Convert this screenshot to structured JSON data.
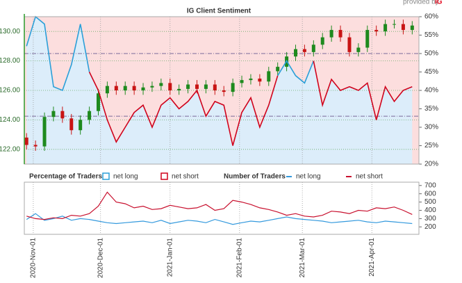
{
  "header": {
    "provided_by": "provided by",
    "logo": "IG"
  },
  "chart_data": [
    {
      "type": "candlestick",
      "title": "IG Client Sentiment",
      "legend_title": "Percentage of Traders",
      "x": [
        "2020-10-29",
        "2020-11-02",
        "2020-11-06",
        "2020-11-10",
        "2020-11-14",
        "2020-11-18",
        "2020-11-22",
        "2020-11-26",
        "2020-11-30",
        "2020-12-04",
        "2020-12-08",
        "2020-12-12",
        "2020-12-16",
        "2020-12-20",
        "2020-12-24",
        "2020-12-28",
        "2021-01-01",
        "2021-01-05",
        "2021-01-09",
        "2021-01-13",
        "2021-01-17",
        "2021-01-21",
        "2021-01-25",
        "2021-01-29",
        "2021-02-02",
        "2021-02-06",
        "2021-02-10",
        "2021-02-14",
        "2021-02-18",
        "2021-02-22",
        "2021-02-26",
        "2021-03-02",
        "2021-03-06",
        "2021-03-10",
        "2021-03-14",
        "2021-03-18",
        "2021-03-22",
        "2021-03-26",
        "2021-03-30",
        "2021-04-03",
        "2021-04-07",
        "2021-04-11",
        "2021-04-15",
        "2021-04-19"
      ],
      "open": [
        122.8,
        122.3,
        122.2,
        124.2,
        124.6,
        124.1,
        123.3,
        124.0,
        124.6,
        125.8,
        126.3,
        126.0,
        126.3,
        126.0,
        126.2,
        126.3,
        126.5,
        126.0,
        126.1,
        126.4,
        126.1,
        126.4,
        126.0,
        125.9,
        126.5,
        126.7,
        126.8,
        126.6,
        127.3,
        127.6,
        128.3,
        128.8,
        128.6,
        129.1,
        129.6,
        130.1,
        129.6,
        128.6,
        128.9,
        130.1,
        130.0,
        130.5,
        130.5,
        130.1
      ],
      "high": [
        123.1,
        122.6,
        124.5,
        124.9,
        124.9,
        124.4,
        124.3,
        124.9,
        126.1,
        126.6,
        126.6,
        126.6,
        126.6,
        126.5,
        126.6,
        126.8,
        126.8,
        126.4,
        126.7,
        126.7,
        126.7,
        126.7,
        126.3,
        126.8,
        127.0,
        127.1,
        127.1,
        127.6,
        127.9,
        128.6,
        129.1,
        129.1,
        129.4,
        129.9,
        130.4,
        130.4,
        129.9,
        129.2,
        130.4,
        130.4,
        130.8,
        130.8,
        130.8,
        130.7
      ],
      "low": [
        122.0,
        121.9,
        121.9,
        123.9,
        123.8,
        123.0,
        123.0,
        123.7,
        124.3,
        125.5,
        125.7,
        125.7,
        125.7,
        125.7,
        125.9,
        126.0,
        125.7,
        125.7,
        125.8,
        125.8,
        125.8,
        125.7,
        125.6,
        125.6,
        126.2,
        126.4,
        126.3,
        126.3,
        127.0,
        127.3,
        128.0,
        128.3,
        128.3,
        128.8,
        129.3,
        129.3,
        128.3,
        128.3,
        128.6,
        129.7,
        129.7,
        130.2,
        129.8,
        129.8
      ],
      "close": [
        122.3,
        122.2,
        124.2,
        124.6,
        124.1,
        123.3,
        124.0,
        124.6,
        125.8,
        126.3,
        126.0,
        126.3,
        126.0,
        126.2,
        126.3,
        126.5,
        126.0,
        126.1,
        126.4,
        126.1,
        126.4,
        126.0,
        125.9,
        126.5,
        126.7,
        126.8,
        126.6,
        127.3,
        127.6,
        128.3,
        128.8,
        128.6,
        129.1,
        129.6,
        130.1,
        129.6,
        128.6,
        128.9,
        130.1,
        130.0,
        130.5,
        130.5,
        130.1,
        130.4
      ],
      "up_color": "#1e8a1e",
      "down_color": "#c81414",
      "series": [
        {
          "name": "net long",
          "color": "#2a9fd8",
          "axis": "y2",
          "values": [
            52,
            60,
            58,
            41,
            40,
            47,
            58,
            45,
            null,
            null,
            null,
            null,
            null,
            null,
            null,
            null,
            null,
            null,
            null,
            null,
            null,
            null,
            null,
            null,
            null,
            null,
            null,
            null,
            44,
            48,
            44,
            42,
            48,
            null,
            null,
            null,
            null,
            null,
            null,
            null,
            null,
            null,
            null,
            null
          ]
        },
        {
          "name": "net short",
          "color": "#d0021b",
          "axis": "y2",
          "values": [
            null,
            null,
            null,
            null,
            null,
            null,
            null,
            45,
            40,
            32,
            26,
            30,
            34,
            36,
            30,
            36,
            38,
            35,
            37,
            40,
            33,
            37,
            36,
            25,
            34,
            38,
            30,
            36,
            44,
            null,
            null,
            null,
            48,
            36,
            43,
            40,
            41,
            40,
            42,
            32,
            41,
            37,
            40,
            41
          ]
        }
      ],
      "xlim": [
        "2020-10-28",
        "2021-04-22"
      ],
      "ylim": [
        121,
        131
      ],
      "yticks": [
        {
          "value": 122,
          "label": "122.00"
        },
        {
          "value": 124,
          "label": "124.00"
        },
        {
          "value": 126,
          "label": "126.00"
        },
        {
          "value": 128,
          "label": "128.00"
        },
        {
          "value": 130,
          "label": "130.00"
        }
      ],
      "y2lim": [
        20,
        60
      ],
      "y2ticks": [
        {
          "value": 20,
          "label": "20%"
        },
        {
          "value": 25,
          "label": "25%"
        },
        {
          "value": 30,
          "label": "30%"
        },
        {
          "value": 35,
          "label": "35%"
        },
        {
          "value": 40,
          "label": "40%"
        },
        {
          "value": 45,
          "label": "45%"
        },
        {
          "value": 50,
          "label": "50%"
        },
        {
          "value": 55,
          "label": "55%"
        },
        {
          "value": 60,
          "label": "60%"
        }
      ],
      "y2_ref_lines": [
        50,
        33
      ],
      "grid": true
    },
    {
      "type": "line",
      "title": "Number of Traders",
      "x": [
        "2020-10-29",
        "2020-11-02",
        "2020-11-06",
        "2020-11-10",
        "2020-11-14",
        "2020-11-18",
        "2020-11-22",
        "2020-11-26",
        "2020-11-30",
        "2020-12-04",
        "2020-12-08",
        "2020-12-12",
        "2020-12-16",
        "2020-12-20",
        "2020-12-24",
        "2020-12-28",
        "2021-01-01",
        "2021-01-05",
        "2021-01-09",
        "2021-01-13",
        "2021-01-17",
        "2021-01-21",
        "2021-01-25",
        "2021-01-29",
        "2021-02-02",
        "2021-02-06",
        "2021-02-10",
        "2021-02-14",
        "2021-02-18",
        "2021-02-22",
        "2021-02-26",
        "2021-03-02",
        "2021-03-06",
        "2021-03-10",
        "2021-03-14",
        "2021-03-18",
        "2021-03-22",
        "2021-03-26",
        "2021-03-30",
        "2021-04-03",
        "2021-04-07",
        "2021-04-11",
        "2021-04-15",
        "2021-04-19"
      ],
      "series": [
        {
          "name": "net long",
          "color": "#3399dd",
          "values": [
            290,
            360,
            280,
            300,
            330,
            280,
            300,
            290,
            270,
            250,
            240,
            250,
            260,
            270,
            250,
            280,
            240,
            260,
            280,
            270,
            250,
            290,
            260,
            230,
            250,
            270,
            260,
            280,
            300,
            320,
            300,
            290,
            280,
            270,
            250,
            260,
            270,
            280,
            260,
            250,
            270,
            260,
            250,
            240
          ]
        },
        {
          "name": "net short",
          "color": "#c8102e",
          "values": [
            330,
            300,
            290,
            310,
            300,
            340,
            330,
            360,
            450,
            620,
            500,
            480,
            430,
            450,
            410,
            420,
            460,
            440,
            420,
            430,
            470,
            400,
            420,
            520,
            500,
            470,
            430,
            410,
            380,
            340,
            360,
            330,
            320,
            340,
            390,
            380,
            360,
            400,
            390,
            430,
            420,
            440,
            400,
            350
          ]
        }
      ],
      "xlim": [
        "2020-10-28",
        "2021-04-22"
      ],
      "xticks": [
        {
          "value": "2020-11-01",
          "label": "2020-Nov-01"
        },
        {
          "value": "2020-12-01",
          "label": "2020-Dec-01"
        },
        {
          "value": "2021-01-01",
          "label": "2021-Jan-01"
        },
        {
          "value": "2021-02-01",
          "label": "2021-Feb-01"
        },
        {
          "value": "2021-03-01",
          "label": "2021-Mar-01"
        },
        {
          "value": "2021-04-01",
          "label": "2021-Apr-01"
        }
      ],
      "ylim": [
        110,
        740
      ],
      "yticks": [
        200,
        300,
        400,
        500,
        600,
        700
      ],
      "grid": true
    }
  ]
}
